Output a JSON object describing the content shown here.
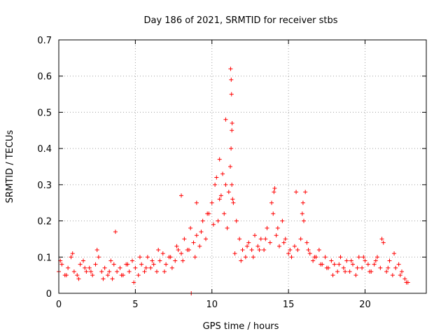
{
  "chart_data": {
    "type": "scatter",
    "title": "Day 186 of 2021, SRMTID for receiver stbs",
    "xlabel": "GPS time / hours",
    "ylabel": "SRMTID / TECUs",
    "xlim": [
      0,
      24
    ],
    "ylim": [
      0,
      0.7
    ],
    "xticks": [
      "0",
      "5",
      "10",
      "15",
      "20"
    ],
    "yticks": [
      "0",
      "0.1",
      "0.2",
      "0.3",
      "0.4",
      "0.5",
      "0.6",
      "0.7"
    ],
    "grid": true,
    "marker": "plus",
    "color": "#ff0000",
    "series": [
      {
        "name": "SRMTID",
        "x": [
          0.0,
          0.2,
          0.4,
          0.6,
          0.8,
          1.0,
          1.2,
          1.4,
          1.6,
          1.8,
          2.0,
          2.2,
          2.4,
          2.6,
          2.8,
          3.0,
          3.2,
          3.4,
          3.5,
          3.6,
          3.8,
          4.0,
          4.2,
          4.4,
          4.6,
          4.8,
          5.0,
          5.2,
          5.4,
          5.6,
          5.8,
          6.0,
          6.2,
          6.4,
          6.6,
          6.8,
          7.0,
          7.2,
          7.4,
          7.6,
          7.8,
          8.0,
          8.2,
          8.4,
          8.6,
          8.8,
          9.0,
          9.2,
          9.4,
          9.6,
          9.8,
          10.0,
          10.2,
          10.4,
          10.6,
          10.8,
          11.0,
          11.1,
          11.2,
          11.3,
          11.4,
          11.6,
          11.8,
          12.0,
          12.2,
          12.4,
          12.6,
          12.8,
          13.0,
          13.2,
          13.4,
          13.6,
          13.8,
          14.0,
          14.1,
          14.2,
          14.4,
          14.6,
          14.8,
          15.0,
          15.2,
          15.4,
          15.6,
          15.8,
          16.0,
          16.2,
          16.4,
          16.6,
          16.8,
          17.0,
          17.2,
          17.4,
          17.6,
          17.8,
          18.0,
          18.2,
          18.4,
          18.6,
          18.8,
          19.0,
          19.2,
          19.4,
          19.6,
          19.8,
          20.0,
          20.2,
          20.4,
          20.6,
          20.8,
          21.0,
          21.2,
          21.4,
          21.6,
          21.8,
          22.0,
          22.2,
          22.4,
          22.6,
          22.8,
          0.1,
          0.5,
          0.9,
          1.3,
          1.7,
          2.1,
          2.5,
          2.9,
          3.3,
          3.7,
          4.1,
          4.5,
          4.9,
          5.3,
          5.7,
          6.1,
          6.5,
          6.9,
          7.3,
          7.7,
          8.1,
          8.5,
          8.9,
          9.3,
          9.7,
          10.1,
          10.5,
          10.9,
          11.25,
          11.35,
          11.5,
          11.9,
          12.3,
          12.7,
          13.1,
          13.5,
          13.9,
          14.3,
          14.7,
          15.1,
          15.5,
          15.9,
          16.3,
          16.7,
          17.1,
          17.5,
          17.9,
          18.3,
          18.7,
          19.1,
          19.5,
          19.9,
          20.3,
          20.7,
          21.1,
          21.5,
          21.9,
          22.3,
          22.7,
          11.22,
          11.26,
          11.28,
          11.3,
          11.32,
          10.3,
          10.5,
          10.7,
          10.9,
          14.05,
          15.95,
          16.1,
          8.0,
          9.0,
          8.65
        ],
        "y": [
          0.06,
          0.08,
          0.05,
          0.07,
          0.1,
          0.06,
          0.05,
          0.08,
          0.09,
          0.06,
          0.07,
          0.05,
          0.08,
          0.1,
          0.06,
          0.07,
          0.05,
          0.09,
          0.04,
          0.08,
          0.06,
          0.07,
          0.05,
          0.08,
          0.06,
          0.09,
          0.07,
          0.05,
          0.08,
          0.06,
          0.1,
          0.07,
          0.08,
          0.06,
          0.09,
          0.11,
          0.08,
          0.1,
          0.07,
          0.09,
          0.12,
          0.11,
          0.15,
          0.12,
          0.18,
          0.14,
          0.16,
          0.13,
          0.2,
          0.15,
          0.22,
          0.25,
          0.3,
          0.2,
          0.27,
          0.22,
          0.18,
          0.28,
          0.35,
          0.3,
          0.25,
          0.2,
          0.15,
          0.12,
          0.1,
          0.14,
          0.12,
          0.16,
          0.13,
          0.15,
          0.12,
          0.18,
          0.14,
          0.22,
          0.29,
          0.16,
          0.13,
          0.2,
          0.15,
          0.11,
          0.1,
          0.13,
          0.12,
          0.15,
          0.2,
          0.14,
          0.11,
          0.09,
          0.1,
          0.12,
          0.08,
          0.1,
          0.07,
          0.09,
          0.08,
          0.06,
          0.1,
          0.07,
          0.09,
          0.06,
          0.08,
          0.05,
          0.1,
          0.07,
          0.09,
          0.08,
          0.06,
          0.08,
          0.1,
          0.07,
          0.14,
          0.06,
          0.09,
          0.05,
          0.07,
          0.08,
          0.06,
          0.04,
          0.03,
          0.09,
          0.05,
          0.11,
          0.04,
          0.07,
          0.06,
          0.12,
          0.04,
          0.06,
          0.17,
          0.05,
          0.08,
          0.03,
          0.1,
          0.07,
          0.09,
          0.12,
          0.06,
          0.1,
          0.13,
          0.09,
          0.12,
          0.1,
          0.17,
          0.22,
          0.19,
          0.26,
          0.48,
          0.4,
          0.26,
          0.11,
          0.09,
          0.13,
          0.1,
          0.12,
          0.15,
          0.25,
          0.18,
          0.14,
          0.12,
          0.28,
          0.22,
          0.12,
          0.1,
          0.08,
          0.07,
          0.05,
          0.08,
          0.06,
          0.09,
          0.07,
          0.1,
          0.06,
          0.09,
          0.15,
          0.07,
          0.11,
          0.05,
          0.03,
          0.62,
          0.59,
          0.55,
          0.45,
          0.47,
          0.32,
          0.37,
          0.33,
          0.3,
          0.28,
          0.25,
          0.28,
          0.27,
          0.25,
          0.0
        ]
      }
    ]
  }
}
